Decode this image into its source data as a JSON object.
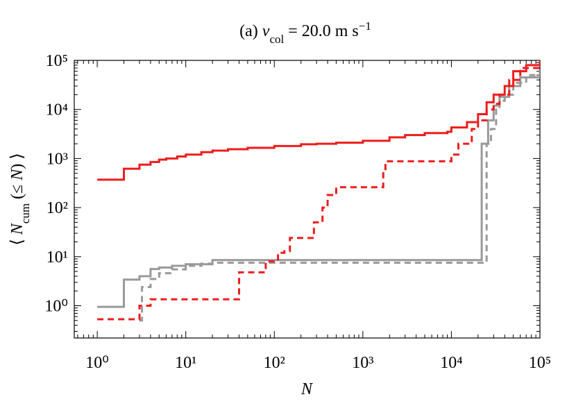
{
  "chart_data": {
    "type": "step",
    "title": [
      "(a) ",
      "v",
      "col",
      " = 20.0 m s",
      "−1"
    ],
    "xlabel": "N",
    "ylabel": [
      "⟨ ",
      "N",
      "cum",
      " (≤ ",
      "N",
      ") ⟩"
    ],
    "xscale": "log",
    "yscale": "log",
    "xlim": [
      0.55,
      100000
    ],
    "ylim": [
      0.22,
      100000
    ],
    "xticks": [
      {
        "value": 1,
        "label": "10⁰"
      },
      {
        "value": 10,
        "label": "10¹"
      },
      {
        "value": 100,
        "label": "10²"
      },
      {
        "value": 1000,
        "label": "10³"
      },
      {
        "value": 10000,
        "label": "10⁴"
      },
      {
        "value": 100000,
        "label": "10⁵"
      }
    ],
    "yticks": [
      {
        "value": 1,
        "label": "10⁰"
      },
      {
        "value": 10,
        "label": "10¹"
      },
      {
        "value": 100,
        "label": "10²"
      },
      {
        "value": 1000,
        "label": "10³"
      },
      {
        "value": 10000,
        "label": "10⁴"
      },
      {
        "value": 100000,
        "label": "10⁵"
      }
    ],
    "series": [
      {
        "color": "#999999",
        "dashed": false,
        "x": [
          1,
          2,
          3,
          4,
          5,
          7,
          10,
          20,
          22000,
          25000,
          26000,
          30000,
          35000,
          45000,
          60000,
          100000
        ],
        "values": [
          0.95,
          3.4,
          4,
          5.6,
          6,
          6.5,
          7,
          8.5,
          2000,
          2000,
          6000,
          12000,
          18000,
          30000,
          45000,
          60000
        ]
      },
      {
        "color": "#999999",
        "dashed": true,
        "x": [
          3,
          3.2,
          4,
          5,
          7,
          10,
          15,
          20,
          25000,
          28000,
          32000,
          35000,
          40000,
          50000,
          70000,
          100000
        ],
        "values": [
          0.5,
          2.4,
          3.5,
          4.6,
          5.5,
          6.5,
          7.2,
          7.5,
          2000,
          4000,
          10000,
          15000,
          20000,
          35000,
          50000,
          65000
        ]
      },
      {
        "color": "#ee1c1c",
        "dashed": true,
        "x": [
          1,
          3,
          4,
          40,
          80,
          110,
          130,
          150,
          280,
          350,
          400,
          500,
          1700,
          1800,
          10000,
          12000,
          17000,
          20000,
          25000,
          30000,
          35000,
          45000,
          60000,
          100000
        ],
        "values": [
          0.53,
          1.0,
          1.35,
          4.8,
          8,
          12,
          13,
          24,
          50,
          100,
          180,
          260,
          500,
          880,
          1200,
          2000,
          4000,
          6000,
          10000,
          13000,
          20000,
          40000,
          70000,
          90000
        ]
      },
      {
        "color": "#ee1c1c",
        "dashed": false,
        "x": [
          1,
          2,
          3,
          4,
          5,
          6,
          8,
          10,
          15,
          20,
          30,
          50,
          100,
          200,
          300,
          500,
          1000,
          2000,
          3000,
          5000,
          9000,
          10000,
          15000,
          20000,
          25000,
          30000,
          40000,
          50000,
          70000,
          100000
        ],
        "values": [
          370,
          620,
          750,
          850,
          950,
          1000,
          1100,
          1200,
          1350,
          1450,
          1550,
          1650,
          1800,
          1950,
          2000,
          2100,
          2300,
          2700,
          3000,
          3300,
          3500,
          4300,
          5500,
          8000,
          14000,
          20000,
          30000,
          60000,
          80000,
          100000
        ]
      }
    ]
  }
}
